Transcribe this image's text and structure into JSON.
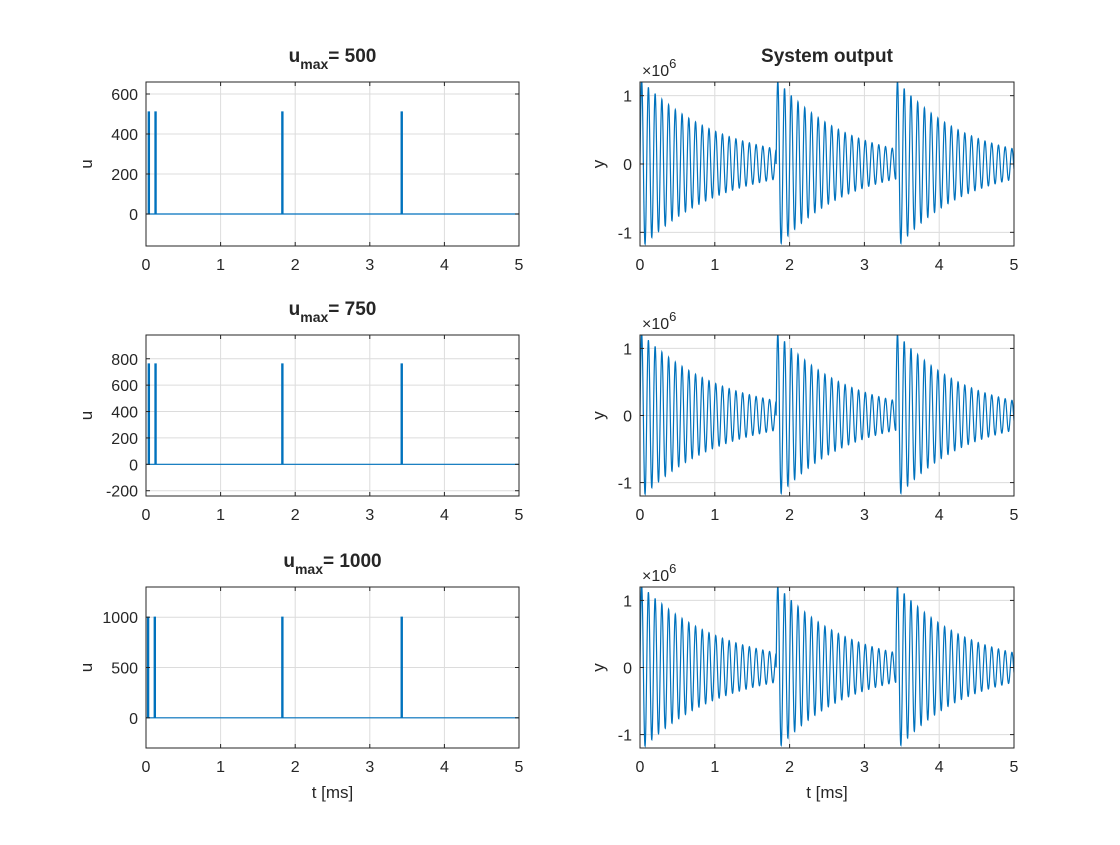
{
  "figure": {
    "colors": {
      "series": "#0072BD",
      "axes": "#262626",
      "grid": "#dcdcdc",
      "background": "#ffffff"
    }
  },
  "chart_data": [
    {
      "id": "u500",
      "type": "line",
      "title": {
        "base": "u",
        "sub": "max",
        "rest": "= 500"
      },
      "xlabel": "",
      "ylabel": "u",
      "xlim": [
        0,
        5
      ],
      "ylim": [
        -160,
        660
      ],
      "xticks": [
        0,
        1,
        2,
        3,
        4,
        5
      ],
      "yticks": [
        0,
        200,
        400,
        600
      ],
      "xtick_labels": [
        "0",
        "1",
        "2",
        "3",
        "4",
        "5"
      ],
      "ytick_labels": [
        "0",
        "200",
        "400",
        "600"
      ],
      "grid": true,
      "series": [
        {
          "kind": "pulses",
          "x": [
            0.03,
            0.12,
            1.82,
            3.42
          ],
          "height": 510,
          "baseline": 0,
          "x_end": 5
        }
      ]
    },
    {
      "id": "y1",
      "type": "line",
      "title": {
        "base": "System output",
        "sub": "",
        "rest": ""
      },
      "xlabel": "",
      "ylabel": "y",
      "xlim": [
        0,
        5
      ],
      "ylim": [
        -1.2,
        1.2
      ],
      "xticks": [
        0,
        1,
        2,
        3,
        4,
        5
      ],
      "yticks": [
        -1,
        0,
        1
      ],
      "xtick_labels": [
        "0",
        "1",
        "2",
        "3",
        "4",
        "5"
      ],
      "ytick_labels": [
        "-1",
        "0",
        "1"
      ],
      "exponent": {
        "base": "×10",
        "power": "6"
      },
      "grid": true,
      "series": [
        {
          "kind": "decaying_oscillation",
          "segment_starts": [
            0,
            1.82,
            3.42
          ],
          "amplitude": 1.25,
          "decay_to": 0.22,
          "period": 0.09,
          "x_end": 5
        }
      ]
    },
    {
      "id": "u750",
      "type": "line",
      "title": {
        "base": "u",
        "sub": "max",
        "rest": "= 750"
      },
      "xlabel": "",
      "ylabel": "u",
      "xlim": [
        0,
        5
      ],
      "ylim": [
        -240,
        980
      ],
      "xticks": [
        0,
        1,
        2,
        3,
        4,
        5
      ],
      "yticks": [
        -200,
        0,
        200,
        400,
        600,
        800
      ],
      "xtick_labels": [
        "0",
        "1",
        "2",
        "3",
        "4",
        "5"
      ],
      "ytick_labels": [
        "-200",
        "0",
        "200",
        "400",
        "600",
        "800"
      ],
      "grid": true,
      "series": [
        {
          "kind": "pulses",
          "x": [
            0.03,
            0.12,
            1.82,
            3.42
          ],
          "height": 760,
          "baseline": 0,
          "x_end": 5
        }
      ]
    },
    {
      "id": "y2",
      "type": "line",
      "title": {
        "base": "",
        "sub": "",
        "rest": ""
      },
      "xlabel": "",
      "ylabel": "y",
      "xlim": [
        0,
        5
      ],
      "ylim": [
        -1.2,
        1.2
      ],
      "xticks": [
        0,
        1,
        2,
        3,
        4,
        5
      ],
      "yticks": [
        -1,
        0,
        1
      ],
      "xtick_labels": [
        "0",
        "1",
        "2",
        "3",
        "4",
        "5"
      ],
      "ytick_labels": [
        "-1",
        "0",
        "1"
      ],
      "exponent": {
        "base": "×10",
        "power": "6"
      },
      "grid": true,
      "series": [
        {
          "kind": "decaying_oscillation",
          "segment_starts": [
            0,
            1.82,
            3.42
          ],
          "amplitude": 1.25,
          "decay_to": 0.22,
          "period": 0.09,
          "x_end": 5
        }
      ]
    },
    {
      "id": "u1000",
      "type": "line",
      "title": {
        "base": "u",
        "sub": "max",
        "rest": "= 1000"
      },
      "xlabel": "t [ms]",
      "ylabel": "u",
      "xlim": [
        0,
        5
      ],
      "ylim": [
        -300,
        1300
      ],
      "xticks": [
        0,
        1,
        2,
        3,
        4,
        5
      ],
      "yticks": [
        0,
        500,
        1000
      ],
      "xtick_labels": [
        "0",
        "1",
        "2",
        "3",
        "4",
        "5"
      ],
      "ytick_labels": [
        "0",
        "500",
        "1000"
      ],
      "grid": true,
      "series": [
        {
          "kind": "pulses",
          "x": [
            0.02,
            0.11,
            1.82,
            3.42
          ],
          "height": 1000,
          "baseline": 0,
          "x_end": 5
        }
      ]
    },
    {
      "id": "y3",
      "type": "line",
      "title": {
        "base": "",
        "sub": "",
        "rest": ""
      },
      "xlabel": "t [ms]",
      "ylabel": "y",
      "xlim": [
        0,
        5
      ],
      "ylim": [
        -1.2,
        1.2
      ],
      "xticks": [
        0,
        1,
        2,
        3,
        4,
        5
      ],
      "yticks": [
        -1,
        0,
        1
      ],
      "xtick_labels": [
        "0",
        "1",
        "2",
        "3",
        "4",
        "5"
      ],
      "ytick_labels": [
        "-1",
        "0",
        "1"
      ],
      "exponent": {
        "base": "×10",
        "power": "6"
      },
      "grid": true,
      "series": [
        {
          "kind": "decaying_oscillation",
          "segment_starts": [
            0,
            1.82,
            3.42
          ],
          "amplitude": 1.25,
          "decay_to": 0.22,
          "period": 0.09,
          "x_end": 5
        }
      ]
    }
  ]
}
